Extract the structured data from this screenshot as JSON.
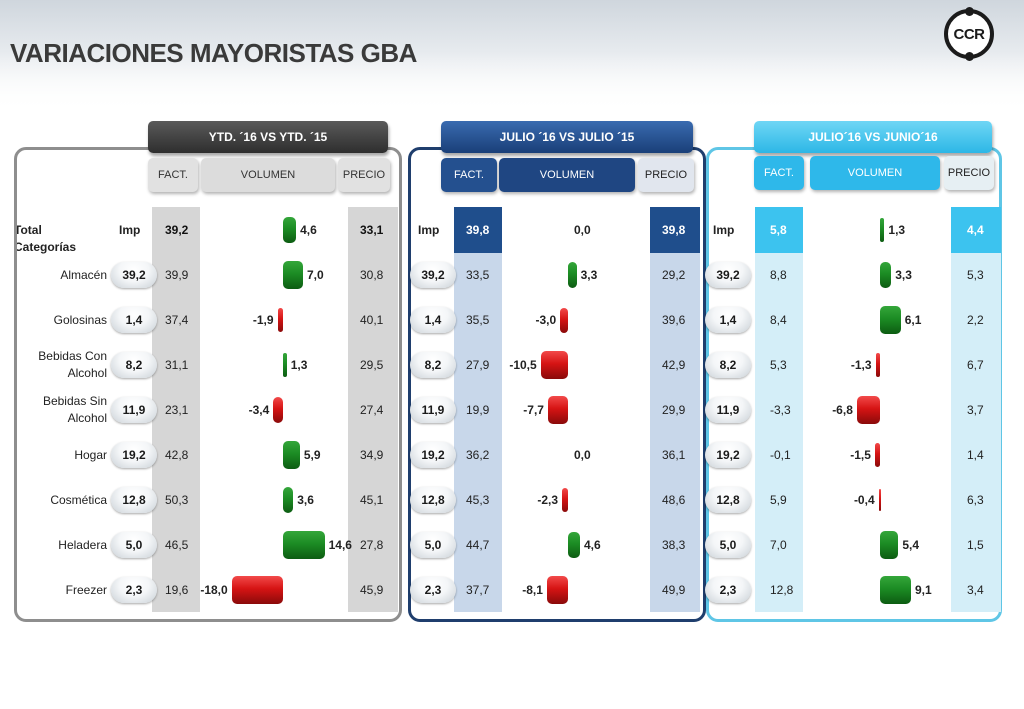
{
  "title": "VARIACIONES MAYORISTAS GBA",
  "logo_text": "CCR",
  "row_header_label": "Imp",
  "categories": [
    "Total Categorías",
    "Almacén",
    "Golosinas",
    "Bebidas Con Alcohol",
    "Bebidas Sin Alcohol",
    "Hogar",
    "Cosmética",
    "Heladera",
    "Freezer"
  ],
  "column_labels": {
    "fact": "FACT.",
    "volumen": "VOLUMEN",
    "precio": "PRECIO"
  },
  "colors": {
    "positive": "#1c8c24",
    "negative": "#d61414",
    "ytd": "#3d3d3d",
    "month": "#1f4e8c",
    "prev_month": "#3cc3ef"
  },
  "chart_data": [
    {
      "type": "bar",
      "title": "YTD. ´16 VS YTD. ´15",
      "categories": [
        "Total Categorías",
        "Almacén",
        "Golosinas",
        "Bebidas Con Alcohol",
        "Bebidas Sin Alcohol",
        "Hogar",
        "Cosmética",
        "Heladera",
        "Freezer"
      ],
      "imp": [
        "Imp",
        "39,2",
        "1,4",
        "8,2",
        "11,9",
        "19,2",
        "12,8",
        "5,0",
        "2,3"
      ],
      "fact": [
        "39,2",
        "39,9",
        "37,4",
        "31,1",
        "23,1",
        "42,8",
        "50,3",
        "46,5",
        "19,6"
      ],
      "volumen": [
        4.6,
        7.0,
        -1.9,
        1.3,
        -3.4,
        5.9,
        3.6,
        14.6,
        -18.0
      ],
      "volumen_labels": [
        "4,6",
        "7,0",
        "-1,9",
        "1,3",
        "-3,4",
        "5,9",
        "3,6",
        "14,6",
        "-18,0"
      ],
      "precio": [
        "33,1",
        "30,8",
        "40,1",
        "29,5",
        "27,4",
        "34,9",
        "45,1",
        "27,8",
        "45,9"
      ]
    },
    {
      "type": "bar",
      "title": "JULIO ´16 VS JULIO ´15",
      "categories": [
        "Total Categorías",
        "Almacén",
        "Golosinas",
        "Bebidas Con Alcohol",
        "Bebidas Sin Alcohol",
        "Hogar",
        "Cosmética",
        "Heladera",
        "Freezer"
      ],
      "imp": [
        "Imp",
        "39,2",
        "1,4",
        "8,2",
        "11,9",
        "19,2",
        "12,8",
        "5,0",
        "2,3"
      ],
      "fact": [
        "39,8",
        "33,5",
        "35,5",
        "27,9",
        "19,9",
        "36,2",
        "45,3",
        "44,7",
        "37,7"
      ],
      "volumen": [
        0.0,
        3.3,
        -3.0,
        -10.5,
        -7.7,
        0.0,
        -2.3,
        4.6,
        -8.1
      ],
      "volumen_labels": [
        "0,0",
        "3,3",
        "-3,0",
        "-10,5",
        "-7,7",
        "0,0",
        "-2,3",
        "4,6",
        "-8,1"
      ],
      "precio": [
        "39,8",
        "29,2",
        "39,6",
        "42,9",
        "29,9",
        "36,1",
        "48,6",
        "38,3",
        "49,9"
      ]
    },
    {
      "type": "bar",
      "title": "JULIO´16 VS JUNIO´16",
      "categories": [
        "Total Categorías",
        "Almacén",
        "Golosinas",
        "Bebidas Con Alcohol",
        "Bebidas Sin Alcohol",
        "Hogar",
        "Cosmética",
        "Heladera",
        "Freezer"
      ],
      "imp": [
        "Imp",
        "39,2",
        "1,4",
        "8,2",
        "11,9",
        "19,2",
        "12,8",
        "5,0",
        "2,3"
      ],
      "fact": [
        "5,8",
        "8,8",
        "8,4",
        "5,3",
        "-3,3",
        "-0,1",
        "5,9",
        "7,0",
        "12,8"
      ],
      "volumen": [
        1.3,
        3.3,
        6.1,
        -1.3,
        -6.8,
        -1.5,
        -0.4,
        5.4,
        9.1
      ],
      "volumen_labels": [
        "1,3",
        "3,3",
        "6,1",
        "-1,3",
        "-6,8",
        "-1,5",
        "-0,4",
        "5,4",
        "9,1"
      ],
      "precio": [
        "4,4",
        "5,3",
        "2,2",
        "6,7",
        "3,7",
        "1,4",
        "6,3",
        "1,5",
        "3,4"
      ]
    }
  ]
}
